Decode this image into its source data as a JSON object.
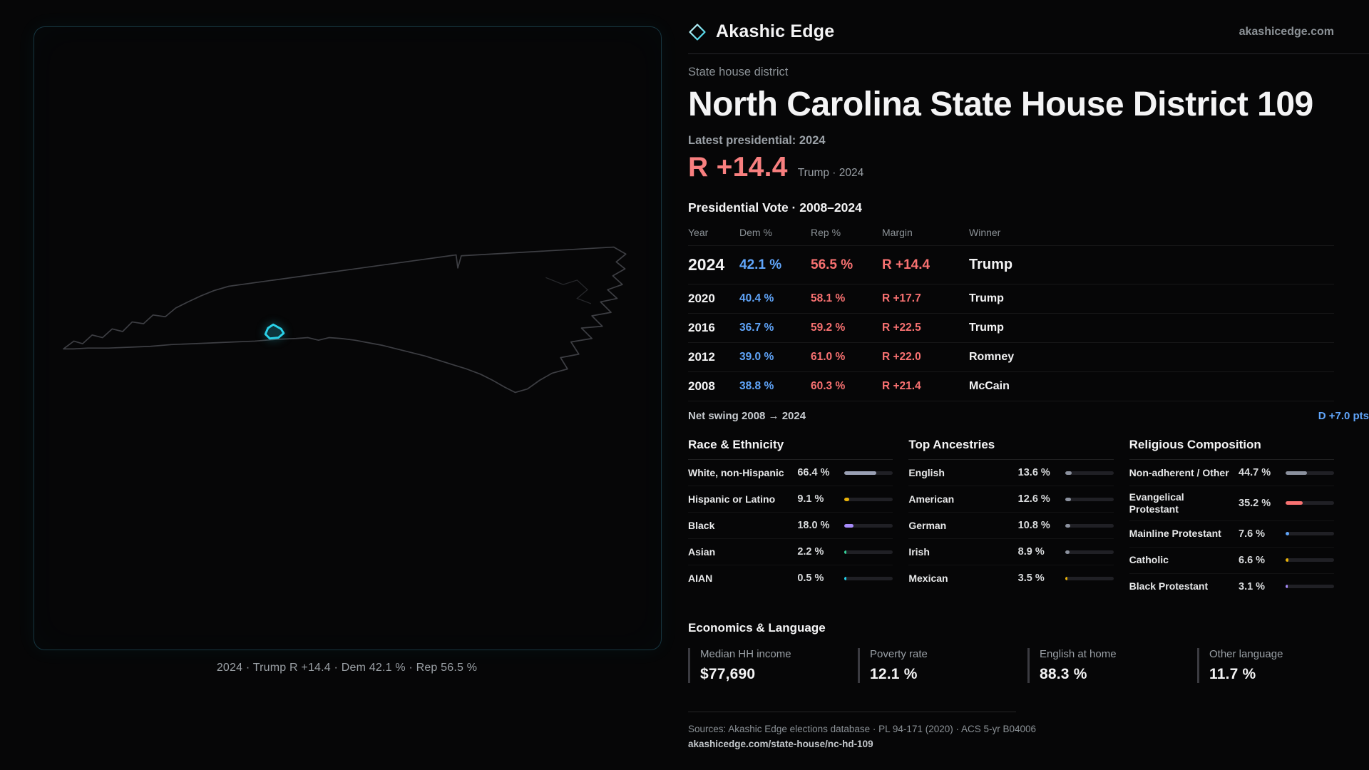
{
  "colors": {
    "accent_cyan": "#2ad1e8",
    "dem_blue": "#60a5fa",
    "rep_red": "#f87171",
    "margin_red": "#f87f7f"
  },
  "map": {
    "caption": "2024 · Trump R +14.4 · Dem 42.1 % · Rep 56.5 %"
  },
  "header": {
    "brand": "Akashic Edge",
    "site": "akashicedge.com"
  },
  "district": {
    "kicker": "State house district",
    "title": "North Carolina State House District 109",
    "latest_label": "Latest presidential: 2024",
    "margin_big": "R +14.4",
    "margin_context": "Trump · 2024"
  },
  "vote": {
    "title": "Presidential Vote · 2008–2024",
    "columns": [
      "Year",
      "Dem %",
      "Rep %",
      "Margin",
      "Winner"
    ],
    "rows": [
      {
        "year": "2024",
        "dem": "42.1 %",
        "rep": "56.5 %",
        "margin": "R +14.4",
        "winner": "Trump"
      },
      {
        "year": "2020",
        "dem": "40.4 %",
        "rep": "58.1 %",
        "margin": "R +17.7",
        "winner": "Trump"
      },
      {
        "year": "2016",
        "dem": "36.7 %",
        "rep": "59.2 %",
        "margin": "R +22.5",
        "winner": "Trump"
      },
      {
        "year": "2012",
        "dem": "39.0 %",
        "rep": "61.0 %",
        "margin": "R +22.0",
        "winner": "Romney"
      },
      {
        "year": "2008",
        "dem": "38.8 %",
        "rep": "60.3 %",
        "margin": "R +21.4",
        "winner": "McCain"
      }
    ],
    "net_swing_label": "Net swing 2008 → 2024",
    "net_swing_value": "D +7.0 pts"
  },
  "demographics": {
    "race": {
      "title": "Race & Ethnicity",
      "rows": [
        {
          "label": "White, non-Hispanic",
          "value": "66.4 %",
          "pct": 66.4,
          "color": "#9aa0b4"
        },
        {
          "label": "Hispanic or Latino",
          "value": "9.1 %",
          "pct": 9.1,
          "color": "#eab308"
        },
        {
          "label": "Black",
          "value": "18.0 %",
          "pct": 18.0,
          "color": "#a78bfa"
        },
        {
          "label": "Asian",
          "value": "2.2 %",
          "pct": 2.2,
          "color": "#34d399"
        },
        {
          "label": "AIAN",
          "value": "0.5 %",
          "pct": 0.5,
          "color": "#22d3ee"
        }
      ]
    },
    "ancestries": {
      "title": "Top Ancestries",
      "rows": [
        {
          "label": "English",
          "value": "13.6 %",
          "pct": 13.6,
          "color": "#8b919e"
        },
        {
          "label": "American",
          "value": "12.6 %",
          "pct": 12.6,
          "color": "#8b919e"
        },
        {
          "label": "German",
          "value": "10.8 %",
          "pct": 10.8,
          "color": "#8b919e"
        },
        {
          "label": "Irish",
          "value": "8.9 %",
          "pct": 8.9,
          "color": "#8b919e"
        },
        {
          "label": "Mexican",
          "value": "3.5 %",
          "pct": 3.5,
          "color": "#eab308"
        }
      ]
    },
    "religion": {
      "title": "Religious Composition",
      "rows": [
        {
          "label": "Non-adherent / Other",
          "value": "44.7 %",
          "pct": 44.7,
          "color": "#8b919e"
        },
        {
          "label": "Evangelical Protestant",
          "value": "35.2 %",
          "pct": 35.2,
          "color": "#f87171"
        },
        {
          "label": "Mainline Protestant",
          "value": "7.6 %",
          "pct": 7.6,
          "color": "#60a5fa"
        },
        {
          "label": "Catholic",
          "value": "6.6 %",
          "pct": 6.6,
          "color": "#eab308"
        },
        {
          "label": "Black Protestant",
          "value": "3.1 %",
          "pct": 3.1,
          "color": "#a78bfa"
        }
      ]
    }
  },
  "economics": {
    "title": "Economics & Language",
    "stats": [
      {
        "label": "Median HH income",
        "value": "$77,690"
      },
      {
        "label": "Poverty rate",
        "value": "12.1 %"
      },
      {
        "label": "English at home",
        "value": "88.3 %"
      },
      {
        "label": "Other language",
        "value": "11.7 %"
      }
    ]
  },
  "footer": {
    "sources": "Sources: Akashic Edge elections database · PL 94-171 (2020) · ACS 5-yr B04006",
    "permalink": "akashicedge.com/state-house/nc-hd-109"
  },
  "chart_data": [
    {
      "type": "table",
      "title": "Presidential Vote · 2008–2024",
      "columns": [
        "Year",
        "Dem %",
        "Rep %",
        "Margin",
        "Winner"
      ],
      "rows": [
        [
          "2024",
          42.1,
          56.5,
          "R +14.4",
          "Trump"
        ],
        [
          "2020",
          40.4,
          58.1,
          "R +17.7",
          "Trump"
        ],
        [
          "2016",
          36.7,
          59.2,
          "R +22.5",
          "Trump"
        ],
        [
          "2012",
          39.0,
          61.0,
          "R +22.0",
          "Romney"
        ],
        [
          "2008",
          38.8,
          60.3,
          "R +21.4",
          "McCain"
        ]
      ],
      "annotations": [
        "Net swing 2008 → 2024: D +7.0 pts",
        "Latest presidential 2024: R +14.4 (Trump)"
      ]
    },
    {
      "type": "bar",
      "title": "Race & Ethnicity",
      "categories": [
        "White, non-Hispanic",
        "Hispanic or Latino",
        "Black",
        "Asian",
        "AIAN"
      ],
      "values": [
        66.4,
        9.1,
        18.0,
        2.2,
        0.5
      ],
      "xlabel": "",
      "ylabel": "Percent",
      "xlim": [
        0,
        100
      ]
    },
    {
      "type": "bar",
      "title": "Top Ancestries",
      "categories": [
        "English",
        "American",
        "German",
        "Irish",
        "Mexican"
      ],
      "values": [
        13.6,
        12.6,
        10.8,
        8.9,
        3.5
      ],
      "xlabel": "",
      "ylabel": "Percent",
      "xlim": [
        0,
        100
      ]
    },
    {
      "type": "bar",
      "title": "Religious Composition",
      "categories": [
        "Non-adherent / Other",
        "Evangelical Protestant",
        "Mainline Protestant",
        "Catholic",
        "Black Protestant"
      ],
      "values": [
        44.7,
        35.2,
        7.6,
        6.6,
        3.1
      ],
      "xlabel": "",
      "ylabel": "Percent",
      "xlim": [
        0,
        100
      ]
    },
    {
      "type": "table",
      "title": "Economics & Language",
      "columns": [
        "Median HH income",
        "Poverty rate",
        "English at home",
        "Other language"
      ],
      "rows": [
        [
          "$77,690",
          "12.1 %",
          "88.3 %",
          "11.7 %"
        ]
      ]
    }
  ]
}
